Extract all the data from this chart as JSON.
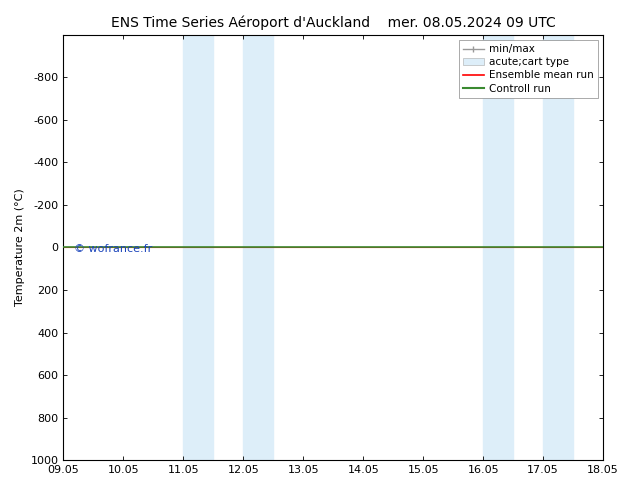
{
  "title": "ENS Time Series Aéroport d'Auckland    mer. 08.05.2024 09 UTC",
  "ylabel": "Temperature 2m (°C)",
  "xlim_labels": [
    "09.05",
    "10.05",
    "11.05",
    "12.05",
    "13.05",
    "14.05",
    "15.05",
    "16.05",
    "17.05",
    "18.05"
  ],
  "xlim": [
    0,
    9
  ],
  "ylim_top": -1000,
  "ylim_bottom": 1000,
  "yticks": [
    -800,
    -600,
    -400,
    -200,
    0,
    200,
    400,
    600,
    800,
    1000
  ],
  "shaded_bands": [
    {
      "x_start": 2.0,
      "x_end": 2.5
    },
    {
      "x_start": 3.0,
      "x_end": 3.5
    },
    {
      "x_start": 7.0,
      "x_end": 7.5
    },
    {
      "x_start": 8.0,
      "x_end": 8.5
    }
  ],
  "shaded_color": "#ddeef9",
  "control_run_y": 0.0,
  "control_run_color": "#3a8a30",
  "ensemble_mean_color": "#ff0000",
  "watermark_text": "© wofrance.fr",
  "watermark_color": "#1a44bb",
  "background_color": "#ffffff",
  "font_size_title": 10,
  "font_size_tick": 8,
  "font_size_legend": 7.5,
  "font_size_ylabel": 8,
  "font_size_watermark": 8
}
